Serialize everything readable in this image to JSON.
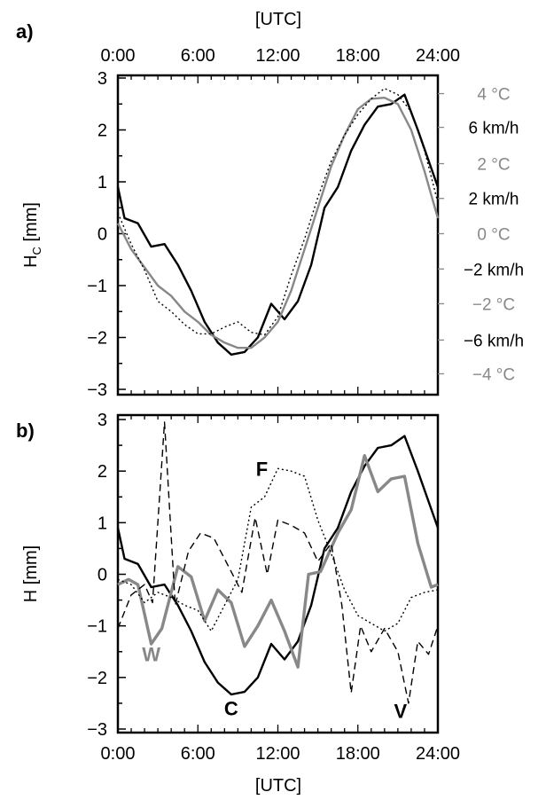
{
  "chart_data": [
    {
      "panel": "a)",
      "type": "line",
      "x_label_top": "[UTC]",
      "x_ticks": [
        "0:00",
        "6:00",
        "12:00",
        "18:00",
        "24:00"
      ],
      "xlim": [
        0,
        24
      ],
      "ylim": [
        -3,
        3
      ],
      "y_ticks": [
        "3",
        "2",
        "1",
        "0",
        "−1",
        "−2",
        "−3"
      ],
      "ylabel_main": "H",
      "ylabel_sub": "C",
      "ylabel_unit": "[mm]",
      "right_axis_labels": [
        {
          "text": "4 °C",
          "y": 2.7,
          "color": "#888888"
        },
        {
          "text": "6 km/h",
          "y": 2.05,
          "color": "#000000"
        },
        {
          "text": "2 °C",
          "y": 1.35,
          "color": "#888888"
        },
        {
          "text": "2 km/h",
          "y": 0.68,
          "color": "#000000"
        },
        {
          "text": "0 °C",
          "y": 0.0,
          "color": "#888888"
        },
        {
          "text": "−2 km/h",
          "y": -0.68,
          "color": "#000000"
        },
        {
          "text": "−2 °C",
          "y": -1.35,
          "color": "#888888"
        },
        {
          "text": "−6 km/h",
          "y": -2.05,
          "color": "#000000"
        },
        {
          "text": "−4 °C",
          "y": -2.7,
          "color": "#888888"
        }
      ],
      "series": [
        {
          "style": "solid-black",
          "color": "#000000",
          "x": [
            0,
            0.5,
            1.5,
            2.5,
            3.5,
            4.5,
            5.5,
            6.5,
            7.5,
            8.5,
            9.5,
            10.5,
            11.5,
            12.5,
            13.5,
            14.5,
            15.5,
            16.5,
            17.5,
            18.5,
            19.5,
            20.5,
            21.5,
            22.5,
            24
          ],
          "y": [
            0.9,
            0.3,
            0.2,
            -0.25,
            -0.2,
            -0.6,
            -1.1,
            -1.7,
            -2.1,
            -2.33,
            -2.28,
            -2.0,
            -1.35,
            -1.65,
            -1.3,
            -0.6,
            0.5,
            0.9,
            1.6,
            2.1,
            2.45,
            2.5,
            2.68,
            2.0,
            0.9
          ]
        },
        {
          "style": "solid-gray",
          "color": "#888888",
          "x": [
            0,
            1,
            2,
            3,
            4,
            5,
            6,
            7,
            8,
            9,
            10,
            11,
            12,
            13,
            14,
            15,
            16,
            17,
            18,
            19,
            20,
            21,
            22,
            23,
            24
          ],
          "y": [
            0.2,
            -0.3,
            -0.65,
            -1.0,
            -1.2,
            -1.5,
            -1.7,
            -1.95,
            -2.1,
            -2.2,
            -2.2,
            -2.0,
            -1.7,
            -1.1,
            -0.3,
            0.5,
            1.3,
            1.9,
            2.4,
            2.6,
            2.62,
            2.5,
            2.0,
            1.2,
            0.3
          ]
        },
        {
          "style": "dotted-black",
          "color": "#000000",
          "x": [
            0,
            1,
            2,
            3,
            4,
            5,
            6,
            7,
            8,
            9,
            10,
            11,
            12,
            13,
            14,
            15,
            16,
            17,
            18,
            19,
            20,
            21,
            22,
            23,
            24
          ],
          "y": [
            0.4,
            -0.2,
            -0.7,
            -1.3,
            -1.5,
            -1.75,
            -1.93,
            -1.93,
            -1.8,
            -1.7,
            -1.9,
            -1.95,
            -1.6,
            -0.8,
            -0.1,
            0.7,
            1.4,
            1.9,
            2.3,
            2.6,
            2.8,
            2.68,
            2.35,
            1.6,
            0.6
          ]
        }
      ]
    },
    {
      "panel": "b)",
      "type": "line",
      "x_label_bottom": "[UTC]",
      "x_ticks": [
        "0:00",
        "6:00",
        "12:00",
        "18:00",
        "24:00"
      ],
      "xlim": [
        0,
        24
      ],
      "ylim": [
        -3,
        3
      ],
      "y_ticks": [
        "3",
        "2",
        "1",
        "0",
        "−1",
        "−2",
        "−3"
      ],
      "ylabel_main": "H",
      "ylabel_unit": "[mm]",
      "annotations": [
        {
          "text": "F",
          "x": 10.8,
          "y": 2.05,
          "color": "#000000"
        },
        {
          "text": "W",
          "x": 2.5,
          "y": -1.55,
          "color": "#888888"
        },
        {
          "text": "C",
          "x": 8.5,
          "y": -2.6,
          "color": "#000000"
        },
        {
          "text": "V",
          "x": 21.2,
          "y": -2.65,
          "color": "#000000"
        }
      ],
      "series": [
        {
          "label": "C",
          "style": "solid-black",
          "color": "#000000",
          "x": [
            0,
            0.5,
            1.5,
            2.5,
            3.5,
            4.5,
            5.5,
            6.5,
            7.5,
            8.5,
            9.5,
            10.5,
            11.5,
            12.5,
            13.5,
            14.5,
            15.5,
            16.5,
            17.5,
            18.5,
            19.5,
            20.5,
            21.5,
            22.5,
            24
          ],
          "y": [
            0.9,
            0.3,
            0.2,
            -0.25,
            -0.2,
            -0.6,
            -1.1,
            -1.7,
            -2.1,
            -2.33,
            -2.28,
            -2.0,
            -1.35,
            -1.65,
            -1.3,
            -0.6,
            0.5,
            0.9,
            1.6,
            2.1,
            2.45,
            2.5,
            2.68,
            2.0,
            0.9
          ]
        },
        {
          "label": "W",
          "style": "solid-gray-thick",
          "color": "#888888",
          "x": [
            0,
            0.8,
            1.5,
            2.5,
            3.3,
            4.5,
            5.5,
            6.5,
            7.5,
            8.5,
            9.5,
            10.5,
            11.5,
            12.5,
            13.5,
            14.3,
            15.2,
            16.5,
            17.5,
            18.5,
            19.5,
            20.5,
            21.5,
            22.5,
            23.5,
            24
          ],
          "y": [
            -0.2,
            -0.1,
            -0.2,
            -1.35,
            -1.05,
            0.15,
            -0.05,
            -0.9,
            -0.3,
            -0.55,
            -1.4,
            -1.0,
            -0.5,
            -1.1,
            -1.8,
            0.0,
            0.05,
            0.8,
            1.25,
            2.3,
            1.6,
            1.85,
            1.9,
            0.6,
            -0.25,
            -0.2
          ]
        },
        {
          "label": "F",
          "style": "dotted-black",
          "color": "#000000",
          "x": [
            0,
            1,
            2,
            3,
            4,
            5,
            6,
            7,
            8,
            9,
            10,
            11,
            12,
            13,
            14,
            15,
            16,
            17,
            18,
            19,
            20,
            21,
            22,
            23,
            24
          ],
          "y": [
            -0.1,
            -0.2,
            -0.55,
            -0.35,
            -0.45,
            -0.6,
            -0.7,
            -1.1,
            -0.6,
            -0.1,
            1.3,
            1.5,
            2.05,
            2.0,
            1.9,
            1.05,
            0.4,
            -0.3,
            -0.8,
            -0.95,
            -1.1,
            -0.95,
            -0.45,
            -0.35,
            -0.3
          ]
        },
        {
          "label": "V",
          "style": "dashed-black",
          "color": "#000000",
          "x": [
            0,
            1,
            2,
            2.6,
            3.5,
            4.3,
            5.3,
            6.2,
            7.2,
            8.0,
            9.3,
            10.3,
            11.2,
            12.0,
            13.0,
            14.0,
            15.0,
            16.0,
            16.8,
            17.5,
            18.2,
            19.0,
            20.0,
            21.0,
            21.8,
            22.5,
            23.3,
            24
          ],
          "y": [
            -1.05,
            -0.4,
            -0.2,
            -0.55,
            2.95,
            -0.6,
            0.45,
            0.8,
            0.7,
            0.3,
            -0.35,
            1.1,
            0.0,
            1.05,
            0.95,
            0.8,
            0.25,
            0.6,
            -0.6,
            -2.3,
            -1.0,
            -1.5,
            -1.05,
            -1.5,
            -2.5,
            -1.3,
            -1.55,
            -1.0
          ]
        }
      ]
    }
  ]
}
